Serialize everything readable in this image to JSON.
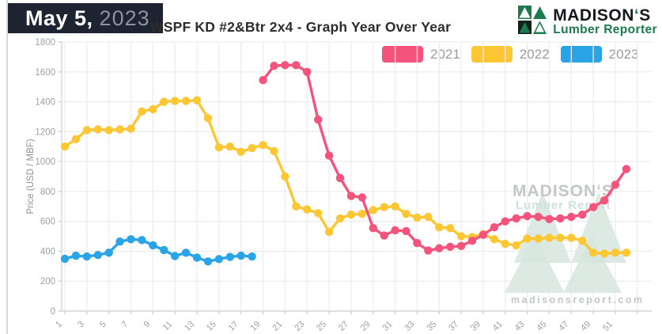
{
  "header": {
    "date_label": "May 5,",
    "date_year": "2023",
    "title": "WSPF KD #2&Btr 2x4 - Graph Year Over Year"
  },
  "logo": {
    "name_pre": "MADISON",
    "apostrophe": "‘",
    "name_post": "S",
    "subtitle": "Lumber Reporter",
    "green": "#1b7b4d",
    "dark": "#15191d"
  },
  "watermark": {
    "brand": "MADISON‘S",
    "brand_sub": "Lumber Report",
    "url": "madisonsreport.com",
    "triangle_color": "#d6e6de",
    "text_color": "#c3c7c9",
    "sub_color": "#cfe2d7"
  },
  "chart_data": {
    "type": "line",
    "title": "WSPF KD #2&Btr 2x4 - Graph Year Over Year",
    "xlabel": "",
    "ylabel": "Price (USD / MBF)",
    "ylim": [
      0,
      1800
    ],
    "ytick_step": 200,
    "yticks": [
      0,
      200,
      400,
      600,
      800,
      1000,
      1200,
      1400,
      1600,
      1800
    ],
    "xticks": [
      1,
      3,
      5,
      7,
      9,
      11,
      13,
      15,
      17,
      19,
      21,
      23,
      25,
      27,
      29,
      31,
      33,
      35,
      37,
      39,
      41,
      43,
      45,
      47,
      49,
      51
    ],
    "x_unit": "week",
    "grid": true,
    "legend_position": "top",
    "axis_text_color": "#9fa1a4",
    "grid_color": "#ededef",
    "series": [
      {
        "name": "2021",
        "color": "#f4537b",
        "values": [
          null,
          null,
          null,
          null,
          null,
          null,
          null,
          null,
          null,
          null,
          null,
          null,
          null,
          null,
          null,
          null,
          null,
          null,
          1545,
          1640,
          1645,
          1645,
          1600,
          1280,
          1040,
          890,
          770,
          760,
          555,
          505,
          540,
          535,
          455,
          405,
          420,
          430,
          435,
          470,
          510,
          560,
          600,
          620,
          635,
          630,
          615,
          620,
          630,
          645,
          695,
          740,
          845,
          950
        ]
      },
      {
        "name": "2022",
        "color": "#fcc732",
        "values": [
          1100,
          1150,
          1210,
          1215,
          1210,
          1215,
          1220,
          1335,
          1350,
          1400,
          1405,
          1405,
          1410,
          1290,
          1095,
          1100,
          1065,
          1090,
          1110,
          1070,
          900,
          700,
          680,
          655,
          530,
          620,
          645,
          650,
          675,
          695,
          700,
          650,
          625,
          630,
          560,
          555,
          500,
          495,
          515,
          480,
          450,
          440,
          485,
          485,
          490,
          490,
          490,
          470,
          390,
          385,
          390,
          390
        ]
      },
      {
        "name": "2023",
        "color": "#29a4e6",
        "values": [
          350,
          370,
          365,
          375,
          390,
          465,
          480,
          475,
          440,
          408,
          368,
          390,
          358,
          332,
          348,
          362,
          370,
          365,
          null,
          null,
          null,
          null,
          null,
          null,
          null,
          null,
          null,
          null,
          null,
          null,
          null,
          null,
          null,
          null,
          null,
          null,
          null,
          null,
          null,
          null,
          null,
          null,
          null,
          null,
          null,
          null,
          null,
          null,
          null,
          null,
          null,
          null
        ]
      }
    ]
  }
}
